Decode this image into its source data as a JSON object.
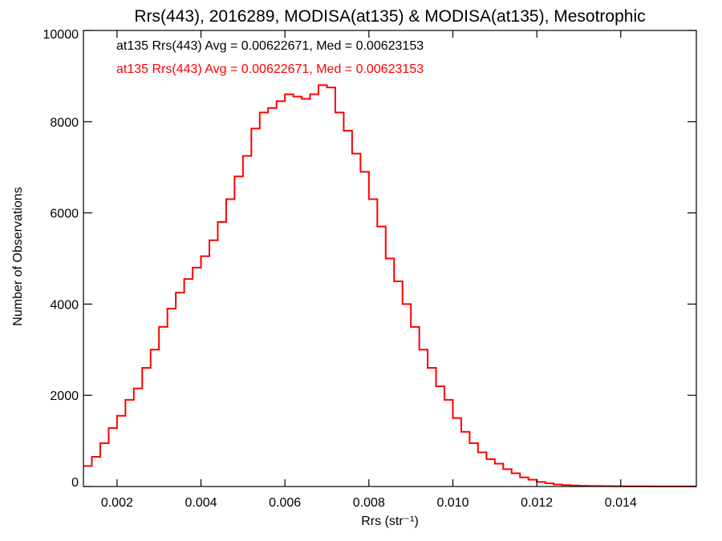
{
  "chart_data": {
    "type": "line",
    "title": "Rrs(443), 2016289, MODISA(at135) & MODISA(at135), Mesotrophic",
    "xlabel": "Rrs (str⁻¹)",
    "ylabel": "Number of Observations",
    "xlim": [
      0.0012,
      0.0158
    ],
    "ylim": [
      0,
      10000
    ],
    "x_ticks": [
      0.002,
      0.004,
      0.006,
      0.008,
      0.01,
      0.012,
      0.014
    ],
    "x_tick_labels": [
      "0.002",
      "0.004",
      "0.006",
      "0.008",
      "0.010",
      "0.012",
      "0.014"
    ],
    "y_ticks": [
      0,
      2000,
      4000,
      6000,
      8000,
      10000
    ],
    "y_tick_labels": [
      "0",
      "2000",
      "4000",
      "6000",
      "8000",
      "10000"
    ],
    "step": true,
    "grid": false,
    "legend": [
      {
        "text": "at135 Rrs(443) Avg = 0.00622671, Med = 0.00623153",
        "color": "#000000"
      },
      {
        "text": "at135 Rrs(443) Avg = 0.00622671, Med = 0.00623153",
        "color": "#ff0000"
      }
    ],
    "legend_position": "top-left",
    "series": [
      {
        "color": "#ff0000",
        "x": [
          0.0012,
          0.0014,
          0.0016,
          0.0018,
          0.002,
          0.0022,
          0.0024,
          0.0026,
          0.0028,
          0.003,
          0.0032,
          0.0034,
          0.0036,
          0.0038,
          0.004,
          0.0042,
          0.0044,
          0.0046,
          0.0048,
          0.005,
          0.0052,
          0.0054,
          0.0056,
          0.0058,
          0.006,
          0.0062,
          0.0064,
          0.0066,
          0.0068,
          0.007,
          0.0072,
          0.0074,
          0.0076,
          0.0078,
          0.008,
          0.0082,
          0.0084,
          0.0086,
          0.0088,
          0.009,
          0.0092,
          0.0094,
          0.0096,
          0.0098,
          0.01,
          0.0102,
          0.0104,
          0.0106,
          0.0108,
          0.011,
          0.0112,
          0.0114,
          0.0116,
          0.0118,
          0.012,
          0.0122,
          0.0124,
          0.0126,
          0.0128,
          0.013,
          0.0132,
          0.0134,
          0.0136,
          0.0138,
          0.014,
          0.0142,
          0.0144,
          0.0146,
          0.0148,
          0.015,
          0.0152,
          0.0154,
          0.0156,
          0.0158
        ],
        "values": [
          450,
          650,
          950,
          1280,
          1550,
          1900,
          2150,
          2600,
          3000,
          3500,
          3900,
          4250,
          4550,
          4800,
          5050,
          5400,
          5800,
          6300,
          6800,
          7250,
          7850,
          8200,
          8300,
          8450,
          8600,
          8550,
          8500,
          8600,
          8800,
          8750,
          8200,
          7800,
          7300,
          6900,
          6300,
          5700,
          5000,
          4500,
          4000,
          3500,
          3000,
          2600,
          2200,
          1900,
          1500,
          1200,
          950,
          750,
          600,
          500,
          380,
          290,
          200,
          150,
          100,
          70,
          45,
          30,
          22,
          15,
          12,
          10,
          8,
          6,
          5,
          5,
          4,
          4,
          3,
          3,
          3,
          3,
          3,
          3
        ]
      }
    ]
  }
}
